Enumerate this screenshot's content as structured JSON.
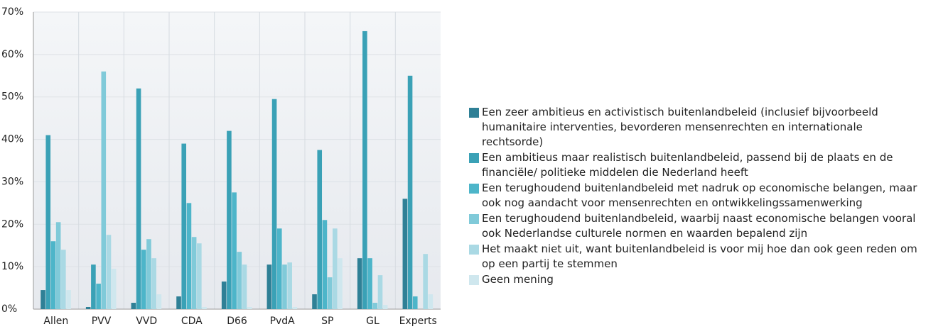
{
  "chart_data": {
    "type": "bar",
    "categories": [
      "Allen",
      "PVV",
      "VVD",
      "CDA",
      "D66",
      "PvdA",
      "SP",
      "GL",
      "Experts"
    ],
    "series": [
      {
        "name": "Een zeer ambitieus en activistisch buitenlandbeleid (inclusief bijvoorbeeld humanitaire interventies, bevorderen mensenrechten en internationale rechtsorde)",
        "color": "#2f8096",
        "values": [
          4.5,
          0.5,
          1.5,
          3,
          6.5,
          10.5,
          3.5,
          12,
          26
        ]
      },
      {
        "name": "Een ambitieus maar realistisch buitenlandbeleid, passend bij de plaats en de financiële/ politieke middelen die Nederland heeft",
        "color": "#3aa1b6",
        "values": [
          41,
          10.5,
          52,
          39,
          42,
          49.5,
          37.5,
          65.5,
          55
        ]
      },
      {
        "name": "Een terughoudend buitenlandbeleid met nadruk op economische belangen, maar ook nog aandacht voor mensenrechten en ontwikkelingssamenwerking",
        "color": "#4db5c9",
        "values": [
          16,
          6,
          14,
          25,
          27.5,
          19,
          21,
          12,
          3
        ]
      },
      {
        "name": "Een terughoudend buitenlandbeleid, waarbij naast economische belangen vooral ook Nederlandse culturele normen en waarden bepalend zijn",
        "color": "#80cad9",
        "values": [
          20.5,
          56,
          16.5,
          17,
          13.5,
          10.5,
          7.5,
          1.5,
          0
        ]
      },
      {
        "name": "Het maakt niet uit, want buitenlandbeleid is voor mij hoe dan ook geen reden om op een partij te stemmen",
        "color": "#aad9e4",
        "values": [
          14,
          17.5,
          12,
          15.5,
          10.5,
          11,
          19,
          8,
          13
        ]
      },
      {
        "name": "Geen mening",
        "color": "#cfe7ee",
        "values": [
          4.5,
          9.5,
          3.5,
          0.5,
          0.5,
          0.5,
          12,
          1,
          3.5
        ]
      }
    ],
    "ylim": [
      0,
      70
    ],
    "yticks": [
      {
        "value": 0,
        "label": "0%"
      },
      {
        "value": 10,
        "label": "10%"
      },
      {
        "value": 20,
        "label": "20%"
      },
      {
        "value": 30,
        "label": "30%"
      },
      {
        "value": 40,
        "label": "40%"
      },
      {
        "value": 50,
        "label": "50%"
      },
      {
        "value": 60,
        "label": "60%"
      },
      {
        "value": 70,
        "label": "70%"
      }
    ],
    "grid": true
  }
}
